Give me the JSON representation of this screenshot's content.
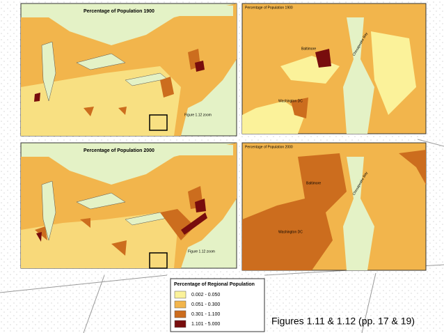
{
  "maps": [
    {
      "title": "Percentage of Population 1900",
      "annotation": "Figure 1.12 zoom"
    },
    {
      "title": "Percentage of Population 2000",
      "annotation": "Figure 1.12 zoom"
    }
  ],
  "zooms": [
    {
      "title": "Percentage of Population 1900",
      "labels": [
        "Baltimore",
        "Washington DC",
        "Chesapeake Bay"
      ]
    },
    {
      "title": "Percentage of Population 2000",
      "labels": [
        "Baltimore",
        "Washington DC",
        "Chesapeake Bay"
      ]
    }
  ],
  "legend": {
    "title": "Percentage of Regional Population",
    "items": [
      {
        "label": "0.002 - 0.050",
        "color": "#fbf29a"
      },
      {
        "label": "0.051 - 0.300",
        "color": "#f2b54c"
      },
      {
        "label": "0.301 - 1.100",
        "color": "#cc6d1e"
      },
      {
        "label": "1.101 - 5.000",
        "color": "#780d0d"
      }
    ]
  },
  "caption": "Figures 1.11 & 1.12 (pp. 17 & 19)"
}
